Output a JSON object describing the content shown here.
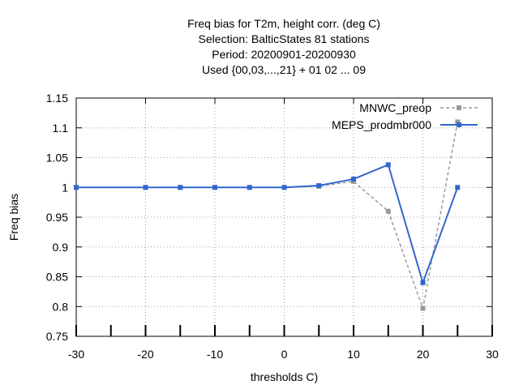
{
  "chart_data": {
    "type": "line",
    "title": [
      "Freq bias  for T2m, height corr. (deg C)",
      "Selection: BalticStates     81 stations",
      "Period: 20200901-20200930",
      "Used {00,03,...,21} + 01 02 ... 09"
    ],
    "xlabel": "thresholds C)",
    "ylabel": "Freq bias",
    "xlim": [
      -30,
      30
    ],
    "ylim": [
      0.75,
      1.15
    ],
    "xticks": [
      -30,
      -20,
      -10,
      0,
      10,
      20,
      30
    ],
    "yticks": [
      0.75,
      0.8,
      0.85,
      0.9,
      0.95,
      1,
      1.05,
      1.1,
      1.15
    ],
    "ytick_labels": [
      "0.75",
      "0.8",
      "0.85",
      "0.9",
      "0.95",
      "1",
      "1.05",
      "1.1",
      "1.15"
    ],
    "grid": true,
    "legend_position": "top-right",
    "series": [
      {
        "name": "MNWC_preop",
        "color": "#999999",
        "dashed": true,
        "x": [
          -30,
          -20,
          -15,
          -10,
          -5,
          0,
          5,
          10,
          15,
          20,
          25
        ],
        "y": [
          1.0,
          1.0,
          1.0,
          1.0,
          1.0,
          1.0,
          1.002,
          1.01,
          0.96,
          0.797,
          1.11
        ]
      },
      {
        "name": "MEPS_prodmbr000",
        "color": "#3366cc",
        "dashed": false,
        "x": [
          -30,
          -20,
          -15,
          -10,
          -5,
          0,
          5,
          10,
          15,
          20,
          25
        ],
        "y": [
          1.0,
          1.0,
          1.0,
          1.0,
          1.0,
          1.0,
          1.003,
          1.014,
          1.038,
          0.84,
          1.0
        ]
      }
    ]
  }
}
